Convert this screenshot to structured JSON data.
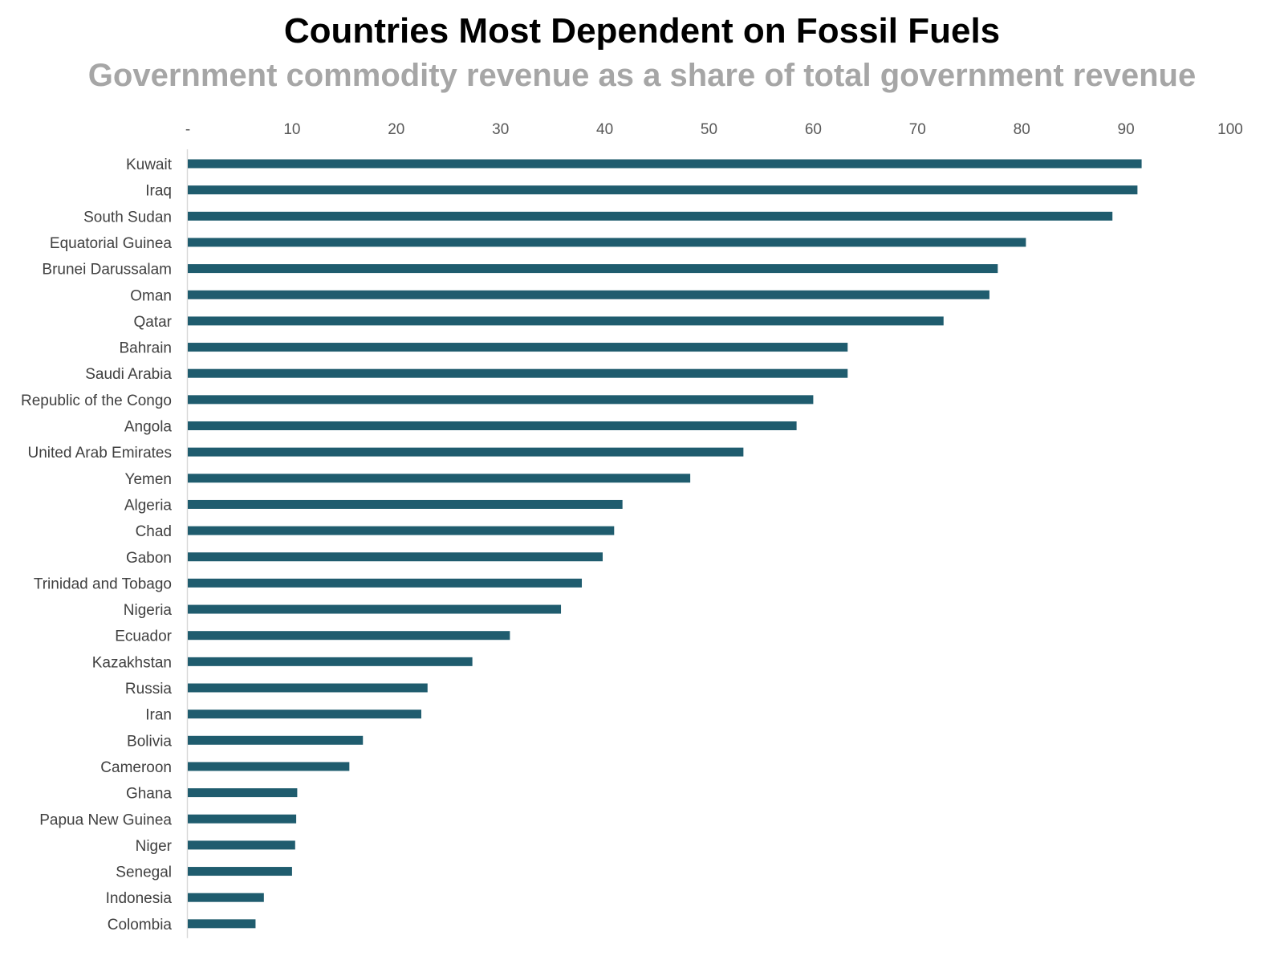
{
  "chart_data": {
    "type": "bar",
    "orientation": "horizontal",
    "title": "Countries Most Dependent on Fossil Fuels",
    "subtitle": "Government commodity revenue as a share of total government revenue",
    "xlabel": "",
    "ylabel": "",
    "xlim": [
      0,
      100
    ],
    "x_ticks": [
      "-",
      "10",
      "20",
      "30",
      "40",
      "50",
      "60",
      "70",
      "80",
      "90",
      "100"
    ],
    "x_tick_values": [
      0,
      10,
      20,
      30,
      40,
      50,
      60,
      70,
      80,
      90,
      100
    ],
    "x_axis_position": "top",
    "grid": false,
    "legend": "none",
    "bar_color": "#1f5c6e",
    "categories": [
      "Kuwait",
      "Iraq",
      "South Sudan",
      "Equatorial Guinea",
      "Brunei Darussalam",
      "Oman",
      "Qatar",
      "Bahrain",
      "Saudi Arabia",
      "Republic of the Congo",
      "Angola",
      "United Arab Emirates",
      "Yemen",
      "Algeria",
      "Chad",
      "Gabon",
      "Trinidad and Tobago",
      "Nigeria",
      "Ecuador",
      "Kazakhstan",
      "Russia",
      "Iran",
      "Bolivia",
      "Cameroon",
      "Ghana",
      "Papua New Guinea",
      "Niger",
      "Senegal",
      "Indonesia",
      "Colombia"
    ],
    "values": [
      91.5,
      91.1,
      88.7,
      80.4,
      77.7,
      76.9,
      72.5,
      63.3,
      63.3,
      60.0,
      58.4,
      53.3,
      48.2,
      41.7,
      40.9,
      39.8,
      37.8,
      35.8,
      30.9,
      27.3,
      23.0,
      22.4,
      16.8,
      15.5,
      10.5,
      10.4,
      10.3,
      10.0,
      7.3,
      6.5
    ]
  }
}
